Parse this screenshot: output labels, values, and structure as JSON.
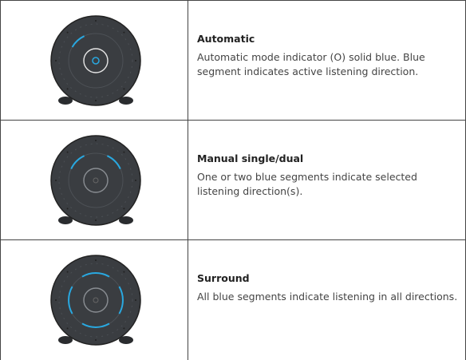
{
  "rows": [
    {
      "title": "Automatic",
      "description": "Automatic mode indicator (O) solid blue. Blue segment indicates active listening direction."
    },
    {
      "title": "Manual single/dual",
      "description": "One or two blue segments indicate selected listening direction(s)."
    },
    {
      "title": "Surround",
      "description": "All blue segments indicate listening in all directions."
    }
  ]
}
